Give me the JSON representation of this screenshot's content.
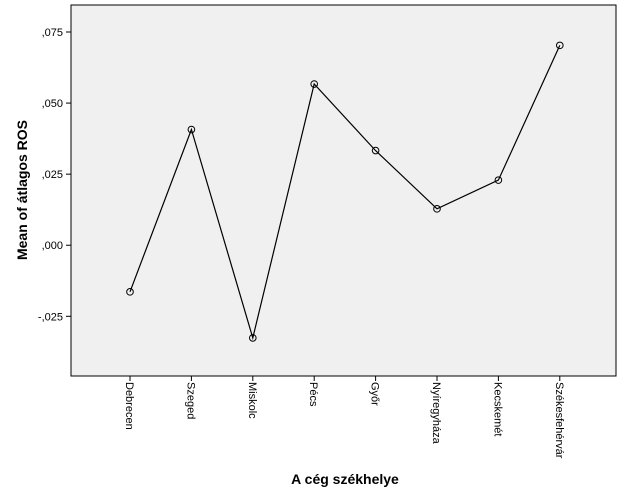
{
  "chart_data": {
    "type": "line",
    "title": "",
    "xlabel": "A cég székhelye",
    "ylabel": "Mean of átlagos ROS",
    "categories": [
      "Debrecen",
      "Szeged",
      "Miskolc",
      "Pécs",
      "Győr",
      "Nyíregyháza",
      "Kecskemét",
      "Székesfehérvár"
    ],
    "series": [
      {
        "values": [
          -0.0164,
          0.0407,
          -0.0326,
          0.0567,
          0.0333,
          0.0128,
          0.0229,
          0.0703
        ]
      }
    ],
    "ylim": [
      -0.046,
      0.0845
    ],
    "yticks": [
      {
        "value": -0.025,
        "label": "-,025"
      },
      {
        "value": 0.0,
        "label": ",000"
      },
      {
        "value": 0.025,
        "label": ",025"
      },
      {
        "value": 0.05,
        "label": ",050"
      },
      {
        "value": 0.075,
        "label": ",075"
      }
    ],
    "grid": false,
    "legend": "none",
    "colors": {
      "plot_background": "#f0f0f0",
      "line": "#000000",
      "marker_stroke": "#000000"
    }
  }
}
